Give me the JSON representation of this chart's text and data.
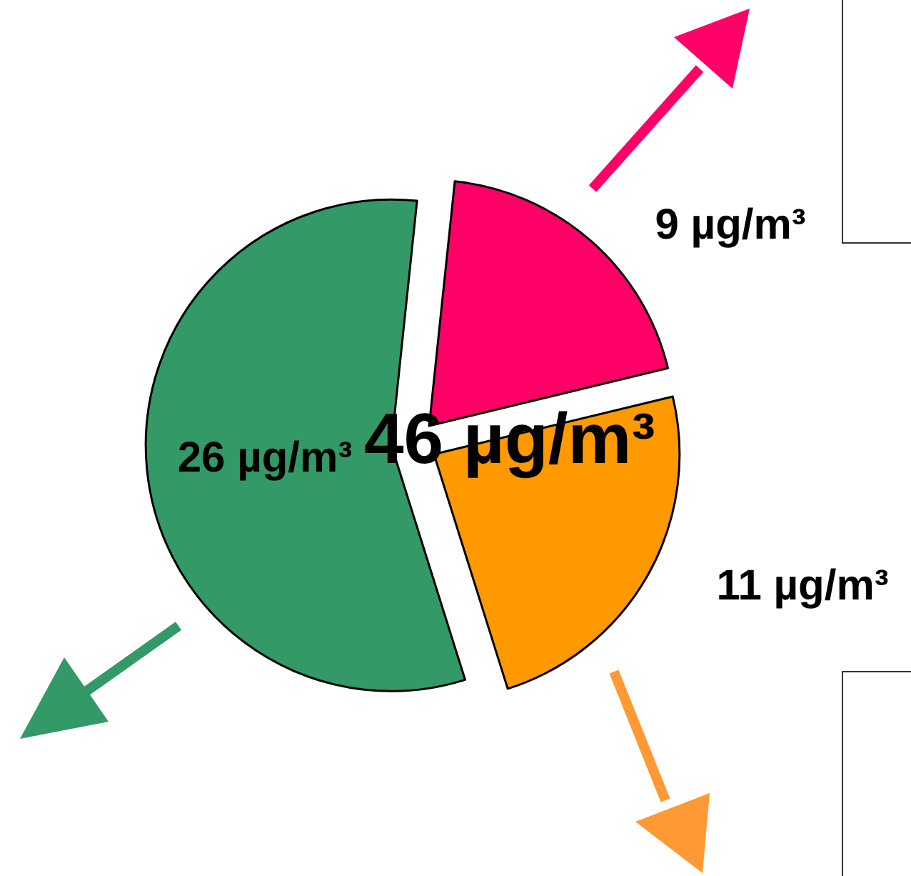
{
  "chart_data": {
    "type": "pie",
    "categories": [
      null,
      null,
      null
    ],
    "values": [
      9,
      11,
      26
    ],
    "colors": [
      "#ff0066",
      "#ff9900",
      "#339966"
    ],
    "value_labels": [
      "9 µg/m³",
      "11 µg/m³",
      "26 µg/m³"
    ],
    "annotations": [
      "46 µg/m³"
    ]
  }
}
